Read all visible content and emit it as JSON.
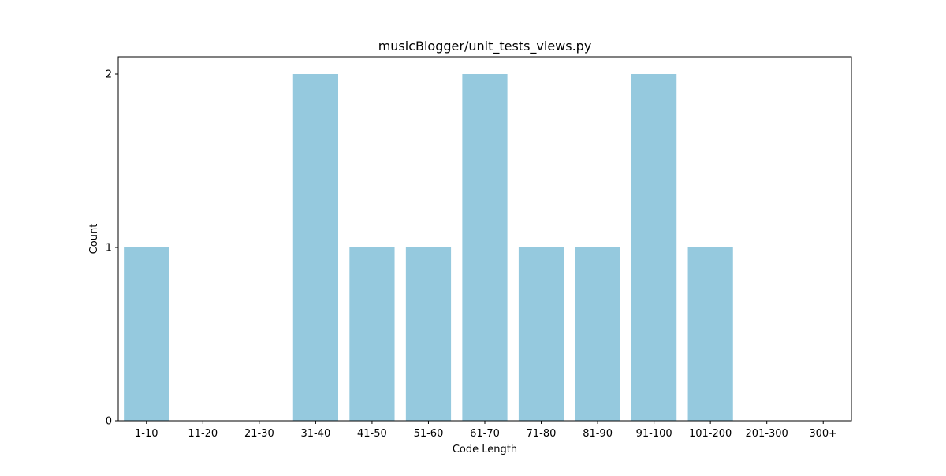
{
  "chart_data": {
    "type": "bar",
    "title": "musicBlogger/unit_tests_views.py",
    "xlabel": "Code Length",
    "ylabel": "Count",
    "categories": [
      "1-10",
      "11-20",
      "21-30",
      "31-40",
      "41-50",
      "51-60",
      "61-70",
      "71-80",
      "81-90",
      "91-100",
      "101-200",
      "201-300",
      "300+"
    ],
    "values": [
      1,
      0,
      0,
      2,
      1,
      1,
      2,
      1,
      1,
      2,
      1,
      0,
      0
    ],
    "yticks": [
      0,
      1,
      2
    ],
    "ylim": [
      0,
      2.1
    ],
    "grid": false,
    "legend": "none",
    "colors": {
      "bar": "#95c9de",
      "axis": "#000000",
      "background": "#ffffff"
    }
  }
}
